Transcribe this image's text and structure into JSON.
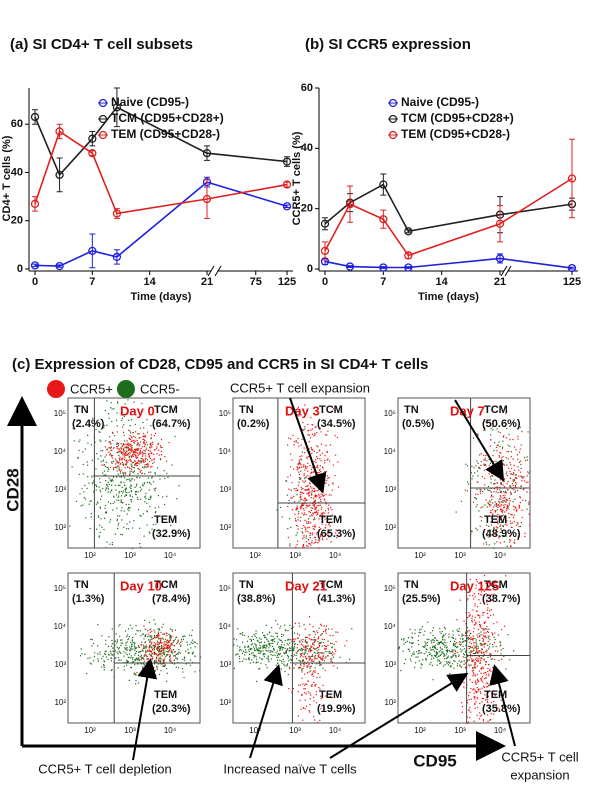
{
  "chart_data": [
    {
      "type": "line",
      "title": "(a)  SI CD4+ T cell subsets",
      "xlabel": "Time (days)",
      "ylabel": "CD4+ T cells (%)",
      "x": [
        0,
        3,
        7,
        10,
        21,
        125
      ],
      "xlim": [
        0,
        125
      ],
      "x_break": 21,
      "xticks": [
        0,
        7,
        14,
        21,
        75,
        125
      ],
      "ylim": [
        0,
        75
      ],
      "yticks": [
        0,
        20,
        40,
        60
      ],
      "series": [
        {
          "name": "Naive (CD95-)",
          "color": "#2020e0",
          "values": [
            1.5,
            1.2,
            7.5,
            5,
            36,
            26
          ],
          "errors": [
            0.5,
            0.5,
            7,
            3,
            2,
            0.5
          ]
        },
        {
          "name": "TCM (CD95+CD28+)",
          "color": "#202020",
          "values": [
            63,
            39,
            54,
            67,
            48,
            44.5
          ],
          "errors": [
            3,
            7,
            3,
            8,
            3,
            2
          ]
        },
        {
          "name": "TEM  (CD95+CD28-)",
          "color": "#e02020",
          "values": [
            27,
            57,
            48,
            23,
            29,
            35
          ],
          "errors": [
            3,
            3,
            1,
            2,
            8,
            1
          ]
        }
      ]
    },
    {
      "type": "line",
      "title": "(b)  SI CCR5 expression",
      "xlabel": "Time (days)",
      "ylabel": "CCR5+ T cells (%)",
      "x": [
        0,
        3,
        7,
        10,
        21,
        125
      ],
      "xlim": [
        0,
        125
      ],
      "x_break": 21,
      "xticks": [
        0,
        7,
        14,
        21,
        125
      ],
      "ylim": [
        0,
        60
      ],
      "yticks": [
        0,
        20,
        40,
        60
      ],
      "series": [
        {
          "name": "Naive (CD95-)",
          "color": "#2020e0",
          "values": [
            2.5,
            0.8,
            0.5,
            0.5,
            3.5,
            0.3
          ],
          "errors": [
            1,
            0.3,
            0.3,
            0.3,
            1.5,
            0.3
          ]
        },
        {
          "name": "TCM (CD95+CD28+)",
          "color": "#202020",
          "values": [
            15,
            22,
            28,
            12.5,
            18,
            21.5
          ],
          "errors": [
            2,
            3,
            3.5,
            0.5,
            6,
            2
          ]
        },
        {
          "name": "TEM  (CD95+CD28-)",
          "color": "#e02020",
          "values": [
            6,
            21.5,
            16.5,
            4.5,
            15,
            30
          ],
          "errors": [
            3,
            6,
            3,
            1,
            6,
            13
          ]
        }
      ]
    }
  ],
  "panel_c": {
    "title": "(c)  Expression of CD28, CD95 and CCR5 in SI CD4+ T cells",
    "legend": [
      "CCR5+",
      "CCR5-"
    ],
    "y_label": "CD28",
    "x_label": "CD95",
    "x_ticks": [
      "10²",
      "10³",
      "10⁴"
    ],
    "y_ticks": [
      "10²",
      "10³",
      "10⁴",
      "10⁵"
    ],
    "gate_names": [
      "TN",
      "TCM",
      "TEM"
    ],
    "plots": [
      {
        "day": "Day 0",
        "tn": "(2.4%)",
        "tcm": "(64.7%)",
        "tem": "(32.9%)"
      },
      {
        "day": "Day 3",
        "tn": "(0.2%)",
        "tcm": "(34.5%)",
        "tem": "(65.3%)"
      },
      {
        "day": "Day 7",
        "tn": "(0.5%)",
        "tcm": "(50.6%)",
        "tem": "(48.9%)"
      },
      {
        "day": "Day 10",
        "tn": "(1.3%)",
        "tcm": "(78.4%)",
        "tem": "(20.3%)"
      },
      {
        "day": "Day 21",
        "tn": "(38.8%)",
        "tcm": "(41.3%)",
        "tem": "(19.9%)"
      },
      {
        "day": "Day 125",
        "tn": "(25.5%)",
        "tcm": "(38.7%)",
        "tem": "(35.8%)"
      }
    ],
    "annotations": [
      "CCR5+ T cell expansion",
      "CCR5+ T cell depletion",
      "Increased naïve T cells",
      "CCR5+ T cell",
      "expansion"
    ]
  }
}
